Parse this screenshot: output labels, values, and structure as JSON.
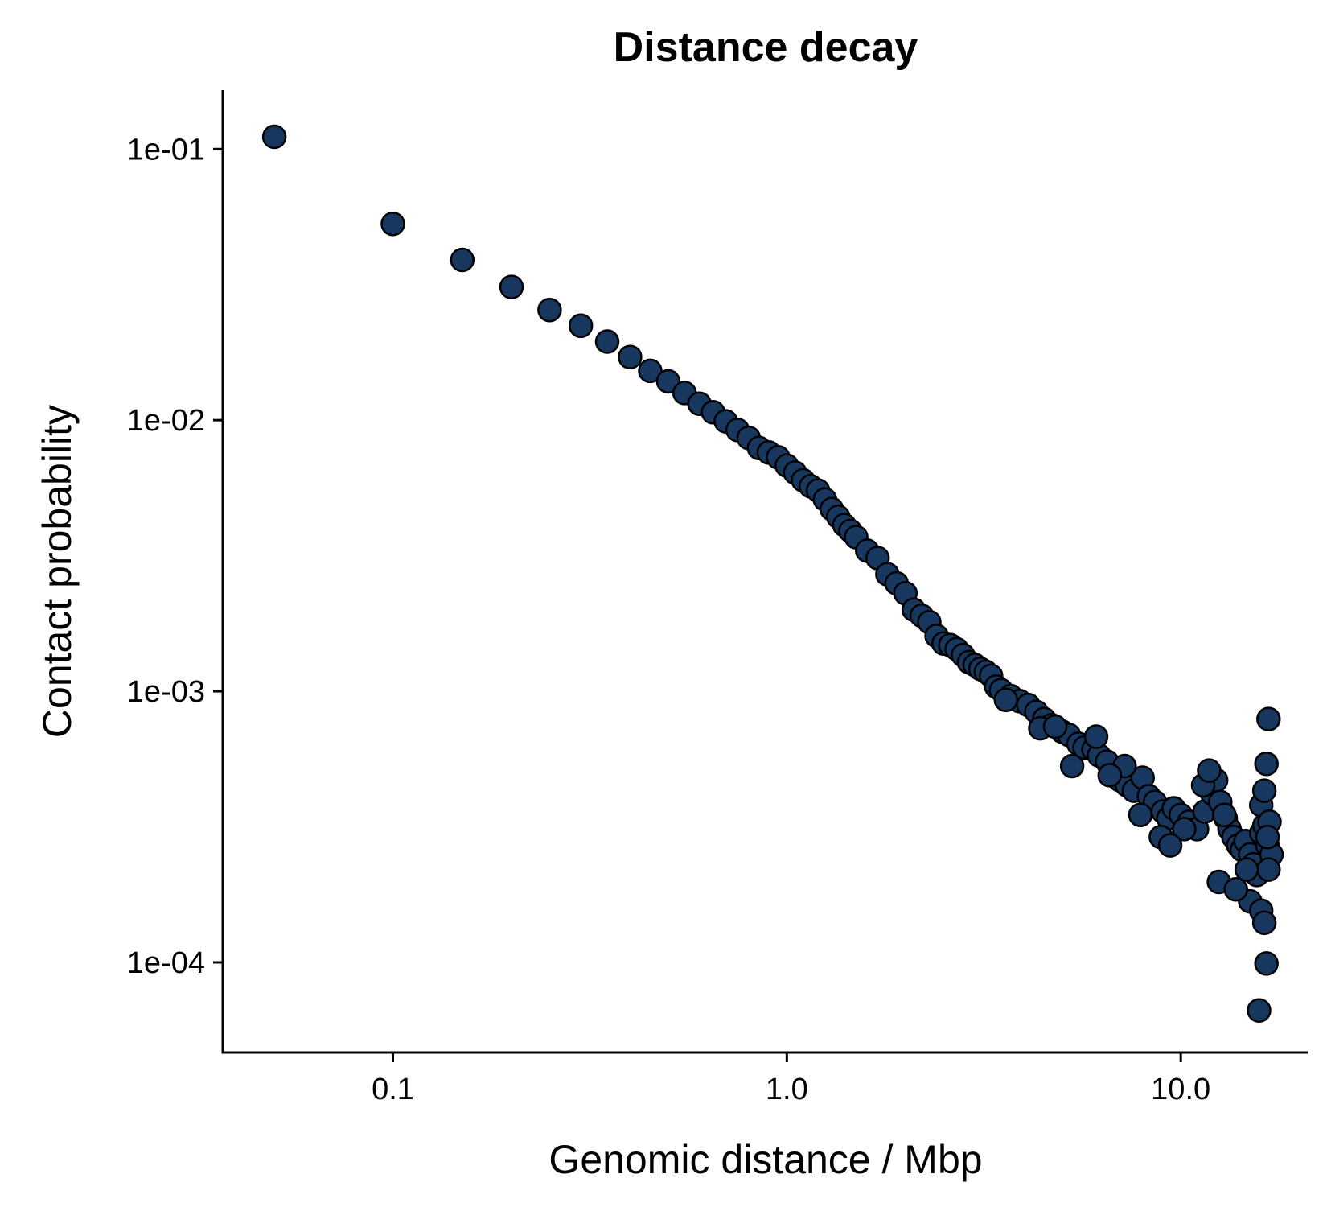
{
  "chart_data": {
    "type": "scatter",
    "title": "Distance decay",
    "xlabel": "Genomic distance / Mbp",
    "ylabel": "Contact probability",
    "x_scale": "log",
    "y_scale": "log",
    "xlim": [
      0.037,
      21
    ],
    "ylim": [
      4.65e-05,
      0.165
    ],
    "x_ticks": [
      {
        "value": 0.1,
        "label": "0.1"
      },
      {
        "value": 1,
        "label": "1.0"
      },
      {
        "value": 10,
        "label": "10.0"
      }
    ],
    "y_ticks": [
      {
        "value": 0.1,
        "label": "1e-01"
      },
      {
        "value": 0.01,
        "label": "1e-02"
      },
      {
        "value": 0.001,
        "label": "1e-03"
      },
      {
        "value": 0.0001,
        "label": "1e-04"
      }
    ],
    "grid": false,
    "legend": "none",
    "point_color": "#17375e",
    "point_stroke": "#000000",
    "series": [
      {
        "x": [
          0.05,
          0.1,
          0.15,
          0.2,
          0.25,
          0.3,
          0.35,
          0.4,
          0.45,
          0.5,
          0.55,
          0.6,
          0.65,
          0.7,
          0.75,
          0.8,
          0.85,
          0.9,
          0.95,
          1.0,
          1.05,
          1.1,
          1.15,
          1.2,
          1.25,
          1.3,
          1.35,
          1.4,
          1.45,
          1.5,
          1.6,
          1.7,
          1.8,
          1.9,
          2.0,
          2.1,
          2.2,
          2.3,
          2.4,
          2.5,
          2.6,
          2.7,
          2.8,
          2.9,
          3.0,
          3.1,
          3.2,
          3.3,
          3.4,
          3.5,
          3.7,
          3.9,
          4.1,
          4.3,
          4.5,
          4.7,
          5.0,
          5.2,
          5.5,
          5.7,
          6.0,
          6.2,
          6.5,
          6.7,
          7.0,
          7.3,
          7.6,
          8.0,
          8.3,
          8.6,
          9.0,
          9.3,
          9.6,
          10.0,
          10.5,
          11.0,
          11.5,
          12.0,
          12.3,
          12.6,
          13.0,
          13.3,
          13.6,
          14.0,
          14.3,
          14.6,
          15.0,
          15.3,
          15.6,
          16.0,
          16.3,
          16.6,
          17.0,
          15.0,
          16.0,
          16.3,
          16.5,
          15.8,
          16.0,
          16.3,
          16.5,
          16.7,
          16.8,
          16.6,
          16.7,
          12.5,
          13.8,
          6.1,
          7.2,
          8.9,
          10.2,
          11.4,
          5.3,
          4.4,
          3.6,
          9.4,
          12.9,
          14.7,
          7.9,
          11.8,
          4.8,
          6.6
        ],
        "y": [
          0.111,
          0.053,
          0.039,
          0.031,
          0.0255,
          0.0223,
          0.0195,
          0.0171,
          0.0152,
          0.0139,
          0.0126,
          0.0115,
          0.0107,
          0.0099,
          0.0092,
          0.0086,
          0.0079,
          0.0076,
          0.0073,
          0.0068,
          0.0064,
          0.006,
          0.0057,
          0.0055,
          0.0051,
          0.0047,
          0.0044,
          0.0041,
          0.0039,
          0.0037,
          0.0033,
          0.0031,
          0.0027,
          0.0025,
          0.0023,
          0.002,
          0.0019,
          0.0018,
          0.0016,
          0.0015,
          0.00148,
          0.00143,
          0.00136,
          0.00128,
          0.00125,
          0.00121,
          0.00118,
          0.00114,
          0.00104,
          0.00101,
          0.00096,
          0.00092,
          0.00089,
          0.00084,
          0.00079,
          0.00075,
          0.00071,
          0.00069,
          0.00064,
          0.00062,
          0.00061,
          0.00058,
          0.00055,
          0.00049,
          0.00047,
          0.00045,
          0.00043,
          0.00048,
          0.00041,
          0.00039,
          0.00036,
          0.00034,
          0.00037,
          0.00035,
          0.00033,
          0.00031,
          0.00036,
          0.00042,
          0.00047,
          0.00039,
          0.00034,
          0.00031,
          0.00029,
          0.00027,
          0.00026,
          0.00028,
          0.00025,
          0.00023,
          0.00021,
          0.0003,
          0.00032,
          0.00027,
          0.00025,
          0.000168,
          0.000155,
          0.00014,
          9.9e-05,
          6.65e-05,
          0.00038,
          0.00043,
          0.00054,
          0.00079,
          0.00033,
          0.00029,
          0.00022,
          0.000198,
          0.000186,
          0.00068,
          0.00053,
          0.00029,
          0.00031,
          0.00045,
          0.00053,
          0.00073,
          0.00093,
          0.00027,
          0.00035,
          0.00022,
          0.00035,
          0.00051,
          0.00074,
          0.00049
        ]
      }
    ]
  }
}
